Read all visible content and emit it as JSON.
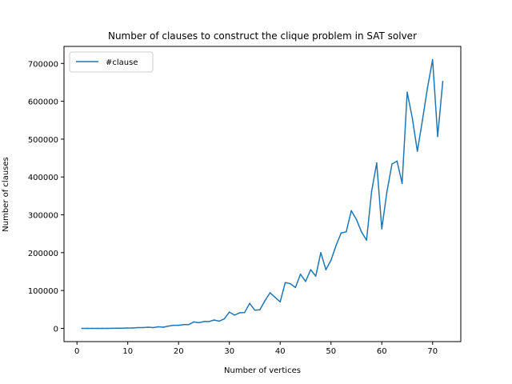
{
  "chart_data": {
    "type": "line",
    "title": "Number of clauses to construct the clique problem in SAT solver",
    "xlabel": "Number of vertices",
    "ylabel": "Number of clauses",
    "xlim": [
      -2.55,
      75.55
    ],
    "ylim": [
      -35000,
      745000
    ],
    "xticks": [
      0,
      10,
      20,
      30,
      40,
      50,
      60,
      70
    ],
    "xtick_labels": [
      "0",
      "10",
      "20",
      "30",
      "40",
      "50",
      "60",
      "70"
    ],
    "yticks": [
      0,
      100000,
      200000,
      300000,
      400000,
      500000,
      600000,
      700000
    ],
    "ytick_labels": [
      "0",
      "100000",
      "200000",
      "300000",
      "400000",
      "500000",
      "600000",
      "700000"
    ],
    "grid": false,
    "legend": "upper-left",
    "series": [
      {
        "name": "#clause",
        "color": "#1f77b4",
        "x": [
          1,
          2,
          3,
          4,
          5,
          6,
          7,
          8,
          9,
          10,
          11,
          12,
          13,
          14,
          15,
          16,
          17,
          18,
          19,
          20,
          21,
          22,
          23,
          24,
          25,
          26,
          27,
          28,
          29,
          30,
          31,
          32,
          33,
          34,
          35,
          36,
          37,
          38,
          39,
          40,
          41,
          42,
          43,
          44,
          45,
          46,
          47,
          48,
          49,
          50,
          51,
          52,
          53,
          54,
          55,
          56,
          57,
          58,
          59,
          60,
          61,
          62,
          63,
          64,
          65,
          66,
          67,
          68,
          69,
          70,
          71,
          72
        ],
        "values": [
          0,
          0,
          0,
          0,
          0,
          0,
          200,
          300,
          500,
          800,
          1000,
          2000,
          2000,
          3000,
          2000,
          4000,
          3000,
          6000,
          8000,
          8000,
          10000,
          10000,
          17000,
          15000,
          18000,
          18000,
          22000,
          19000,
          25000,
          43000,
          35000,
          41000,
          42000,
          66000,
          48000,
          49000,
          73000,
          94000,
          82000,
          70000,
          121000,
          118000,
          108000,
          143000,
          124000,
          155000,
          138000,
          200000,
          155000,
          180000,
          219000,
          252000,
          255000,
          311000,
          288000,
          255000,
          233000,
          362000,
          437000,
          263000,
          360000,
          434000,
          442000,
          383000,
          624000,
          556000,
          468000,
          550000,
          636000,
          710000,
          507000,
          652000
        ]
      }
    ]
  }
}
